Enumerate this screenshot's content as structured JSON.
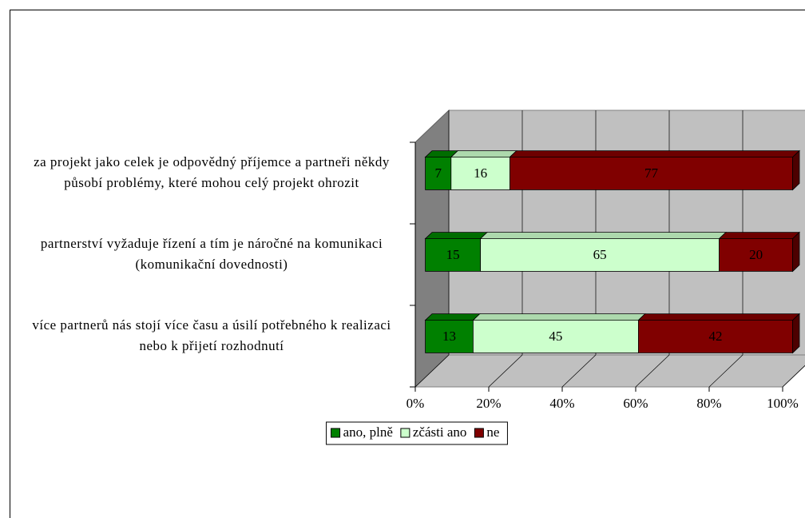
{
  "chart_data": {
    "type": "bar_3d_stacked_percent_horizontal",
    "categories": [
      "za projekt jako celek je odpovědný příjemce a partneři někdy působí problémy, které mohou celý projekt ohrozit",
      "partnerství vyžaduje řízení a tím je náročné na komunikaci (komunikační dovednosti)",
      "více partnerů nás stojí více času a úsilí potřebného k realizaci nebo k přijetí rozhodnutí"
    ],
    "series": [
      {
        "name": "ano, plně",
        "color": "#008000",
        "values": [
          7,
          15,
          13
        ]
      },
      {
        "name": "zčásti ano",
        "color": "#ccffcc",
        "values": [
          16,
          65,
          45
        ]
      },
      {
        "name": "ne",
        "color": "#800000",
        "values": [
          77,
          20,
          42
        ]
      }
    ],
    "xlim": [
      0,
      100
    ],
    "xticks": [
      {
        "value": 0,
        "label": "0%"
      },
      {
        "value": 20,
        "label": "20%"
      },
      {
        "value": 40,
        "label": "40%"
      },
      {
        "value": 60,
        "label": "60%"
      },
      {
        "value": 80,
        "label": "80%"
      },
      {
        "value": 100,
        "label": "100%"
      }
    ],
    "grid": true,
    "legend": "bottom"
  }
}
